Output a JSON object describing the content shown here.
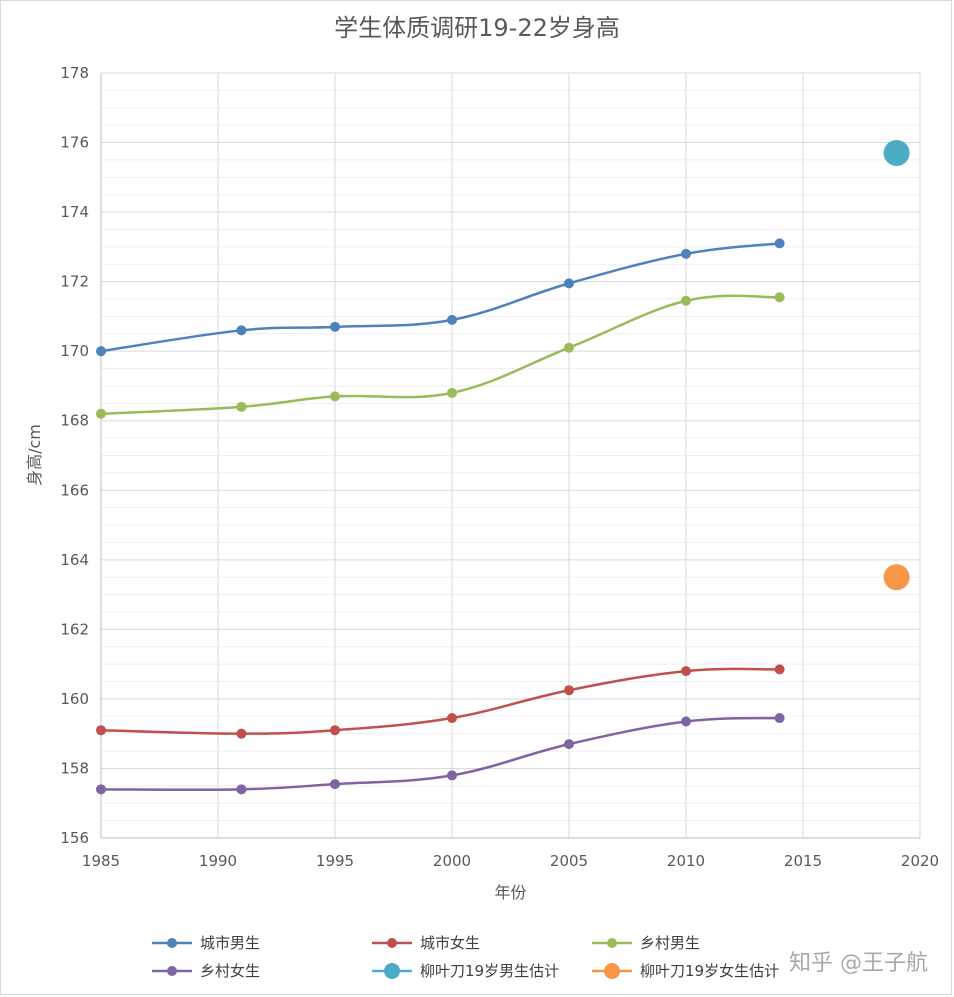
{
  "chart_data": {
    "type": "line",
    "title": "学生体质调研19-22岁身高",
    "xlabel": "年份",
    "ylabel": "身高/cm",
    "xlim": [
      1985,
      2020
    ],
    "ylim": [
      156,
      178
    ],
    "xticks": [
      1985,
      1990,
      1995,
      2000,
      2005,
      2010,
      2015,
      2020
    ],
    "yticks": [
      156,
      158,
      160,
      162,
      164,
      166,
      168,
      170,
      172,
      174,
      176,
      178
    ],
    "grid": true,
    "legend_position": "bottom",
    "series": [
      {
        "name": "城市男生",
        "color": "#4f81bd",
        "type": "line",
        "points": [
          [
            1985,
            170.0
          ],
          [
            1991,
            170.6
          ],
          [
            1995,
            170.7
          ],
          [
            2000,
            170.9
          ],
          [
            2005,
            171.95
          ],
          [
            2010,
            172.8
          ],
          [
            2014,
            173.1
          ]
        ]
      },
      {
        "name": "城市女生",
        "color": "#c0504d",
        "type": "line",
        "points": [
          [
            1985,
            159.1
          ],
          [
            1991,
            159.0
          ],
          [
            1995,
            159.1
          ],
          [
            2000,
            159.45
          ],
          [
            2005,
            160.25
          ],
          [
            2010,
            160.8
          ],
          [
            2014,
            160.85
          ]
        ]
      },
      {
        "name": "乡村男生",
        "color": "#9bbb59",
        "type": "line",
        "points": [
          [
            1985,
            168.2
          ],
          [
            1991,
            168.4
          ],
          [
            1995,
            168.7
          ],
          [
            2000,
            168.8
          ],
          [
            2005,
            170.1
          ],
          [
            2010,
            171.45
          ],
          [
            2014,
            171.55
          ]
        ]
      },
      {
        "name": "乡村女生",
        "color": "#8064a2",
        "type": "line",
        "points": [
          [
            1985,
            157.4
          ],
          [
            1991,
            157.4
          ],
          [
            1995,
            157.55
          ],
          [
            2000,
            157.8
          ],
          [
            2005,
            158.7
          ],
          [
            2010,
            159.35
          ],
          [
            2014,
            159.45
          ]
        ]
      },
      {
        "name": "柳叶刀19岁男生估计",
        "color": "#4bacc6",
        "type": "marker",
        "points": [
          [
            2019,
            175.7
          ]
        ]
      },
      {
        "name": "柳叶刀19岁女生估计",
        "color": "#f79646",
        "type": "marker",
        "points": [
          [
            2019,
            163.5
          ]
        ]
      }
    ]
  },
  "watermark": "知乎 @王子航"
}
